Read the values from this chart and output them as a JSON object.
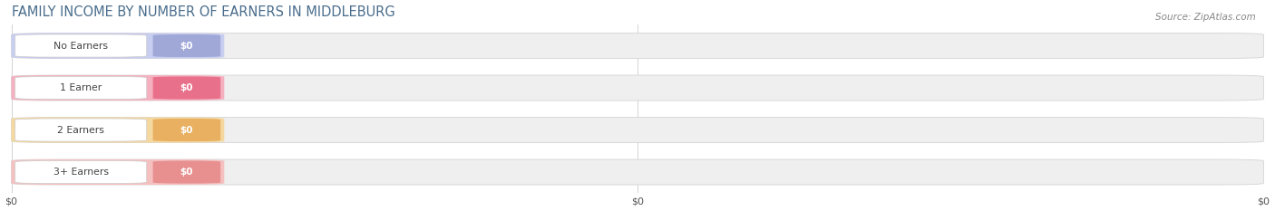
{
  "title": "FAMILY INCOME BY NUMBER OF EARNERS IN MIDDLEBURG",
  "title_color": "#4a6d8c",
  "title_fontsize": 10.5,
  "source_text": "Source: ZipAtlas.com",
  "categories": [
    "No Earners",
    "1 Earner",
    "2 Earners",
    "3+ Earners"
  ],
  "values": [
    0,
    0,
    0,
    0
  ],
  "bar_colors": [
    "#a0a8d8",
    "#e8708a",
    "#e8b060",
    "#e89090"
  ],
  "bar_light_colors": [
    "#c8cef0",
    "#f5b0c0",
    "#f5d8a0",
    "#f5c0c0"
  ],
  "bar_track_color": "#efefef",
  "bar_track_edge_color": "#d8d8d8",
  "value_label_color": "#ffffff",
  "category_label_color": "#444444",
  "background_color": "#ffffff",
  "figsize": [
    14.06,
    2.33
  ],
  "dpi": 100
}
